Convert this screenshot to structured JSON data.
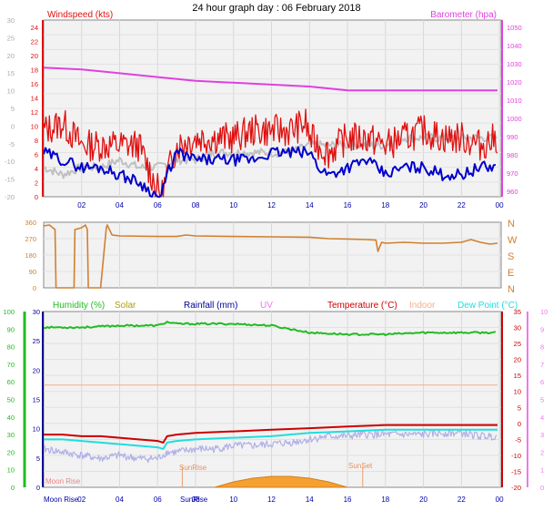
{
  "title": "24 hour graph day : 06 February 2018",
  "colors": {
    "wind": "#e01010",
    "gust_avg": "#0000cc",
    "gray": "#c0c0c0",
    "baro": "#e040e0",
    "dir": "#d08030",
    "humidity": "#22bb22",
    "solar": "#b0a000",
    "rain": "#000099",
    "uv": "#ee77ee",
    "temp": "#cc0000",
    "indoor": "#f0b090",
    "dew": "#22dddd",
    "lavender": "#b0b0e8",
    "sunshade": "#f5a030",
    "plotbg": "#f2f2f2",
    "tick": "#dd33dd"
  },
  "x_ticks": [
    "02",
    "04",
    "06",
    "08",
    "10",
    "12",
    "14",
    "16",
    "18",
    "20",
    "22",
    "00"
  ],
  "chart_data": [
    {
      "type": "line",
      "id": "wind",
      "title": "24 hour graph day : 06 February 2018",
      "legend": [
        "Windspeed (kts)",
        "Barometer (hpa)"
      ],
      "left_outer_ticks": [
        "30",
        "25",
        "20",
        "15",
        "10",
        "5",
        "0",
        "-5",
        "-10",
        "-15",
        "-20"
      ],
      "left_inner_ticks": [
        "24",
        "22",
        "20",
        "18",
        "16",
        "14",
        "12",
        "10",
        "8",
        "6",
        "4",
        "2",
        "0"
      ],
      "right_ticks": [
        "1050",
        "1040",
        "1030",
        "1020",
        "1010",
        "1000",
        "990",
        "980",
        "970",
        "960"
      ],
      "ylim_left": [
        0,
        24
      ],
      "ylim_right": [
        957,
        1050
      ],
      "series": [
        {
          "name": "Windspeed (kts)",
          "key": "windspeed",
          "x": [
            0,
            1,
            2,
            3,
            4,
            5,
            6,
            6.2,
            6.5,
            7,
            8,
            9,
            10,
            11,
            12,
            13,
            13.8,
            14,
            14.5,
            15,
            16,
            17,
            18,
            19,
            20,
            21,
            22,
            23,
            23.9
          ],
          "y": [
            9,
            10,
            7,
            7,
            7,
            7,
            1,
            0,
            3,
            7,
            8,
            8,
            8,
            9,
            9,
            9,
            10,
            8,
            7,
            6,
            8,
            8,
            7,
            8,
            9,
            8,
            8,
            7,
            8
          ]
        },
        {
          "name": "",
          "key": "avg",
          "x": [
            0,
            1,
            2,
            3,
            4,
            5,
            5.5,
            6,
            6.2,
            6.5,
            7,
            8,
            9,
            10,
            11,
            12,
            13,
            13.8,
            14,
            14.5,
            15,
            16,
            17,
            18,
            19,
            20,
            21,
            22,
            23,
            23.9
          ],
          "y": [
            6,
            5,
            4,
            4,
            3,
            2,
            1,
            0,
            0,
            3,
            6,
            5,
            5,
            5,
            5,
            6,
            6,
            6,
            6,
            4,
            3,
            4,
            5,
            3,
            4,
            4,
            3,
            3,
            4,
            4
          ]
        },
        {
          "name": "",
          "key": "gray",
          "x": [
            0,
            1,
            2,
            3,
            4,
            5,
            6,
            7,
            8,
            9,
            10,
            11,
            12,
            13,
            14,
            15,
            16,
            17,
            18,
            19,
            20,
            21,
            22,
            23,
            23.9
          ],
          "y": [
            4,
            3,
            4,
            4,
            5,
            4,
            4,
            5,
            5,
            6,
            6,
            6,
            6,
            6,
            7,
            7,
            7,
            7,
            7,
            8,
            8,
            8,
            8,
            8,
            8
          ]
        },
        {
          "name": "Barometer (hpa)",
          "key": "barometer",
          "x": [
            0,
            2,
            4,
            6,
            8,
            10,
            12,
            14,
            16,
            18,
            20,
            22,
            23.9
          ],
          "y": [
            1025,
            1024,
            1022,
            1020,
            1018,
            1017,
            1016,
            1015,
            1013,
            1013,
            1013,
            1013,
            1013
          ]
        }
      ]
    },
    {
      "type": "line",
      "id": "direction",
      "right_labels": [
        "N",
        "W",
        "S",
        "E",
        "N"
      ],
      "left_ticks": [
        "360",
        "270",
        "180",
        "90",
        "0"
      ],
      "ylim": [
        0,
        360
      ],
      "series": [
        {
          "name": "",
          "x": [
            0,
            0.3,
            0.6,
            0.65,
            1.6,
            1.65,
            2,
            2.2,
            2.3,
            2.35,
            3,
            3.3,
            3.35,
            3.6,
            4,
            6,
            7,
            7.5,
            8,
            10,
            12,
            14,
            15,
            16,
            17,
            17.5,
            17.6,
            17.8,
            18,
            19,
            20,
            21,
            22,
            22.5,
            23,
            23.5,
            23.9
          ],
          "y": [
            340,
            345,
            320,
            0,
            0,
            320,
            330,
            345,
            320,
            0,
            0,
            330,
            345,
            290,
            285,
            282,
            282,
            290,
            285,
            282,
            280,
            278,
            270,
            268,
            265,
            262,
            200,
            250,
            245,
            250,
            245,
            245,
            250,
            265,
            250,
            240,
            245
          ]
        }
      ]
    },
    {
      "type": "line",
      "id": "temperature",
      "legend": [
        "Humidity (%)",
        "Solar",
        "Rainfall (mm)",
        "UV",
        "Temperature (°C)",
        "Indoor",
        "Dew Point (°C)"
      ],
      "left_outer_ticks": [
        "100",
        "90",
        "80",
        "70",
        "60",
        "50",
        "40",
        "30",
        "20",
        "10",
        "0"
      ],
      "left_inner_ticks": [
        "30",
        "25",
        "20",
        "15",
        "10",
        "5",
        "0"
      ],
      "right_inner_ticks": [
        "35",
        "30",
        "25",
        "20",
        "15",
        "10",
        "5",
        "0",
        "-5",
        "-10",
        "-15",
        "-20"
      ],
      "right_outer_ticks": [
        "10",
        "9",
        "8",
        "7",
        "6",
        "5",
        "4",
        "3",
        "2",
        "1",
        "0"
      ],
      "ylim_temp": [
        -20,
        35
      ],
      "ylim_humidity": [
        0,
        100
      ],
      "annotations": [
        "Moon Rise",
        "SunRise",
        "SunSet",
        "SunRise"
      ],
      "series": [
        {
          "name": "Humidity (%)",
          "key": "humidity",
          "x": [
            0,
            2,
            4,
            6,
            6.5,
            7,
            8,
            10,
            12,
            13,
            14,
            16,
            18,
            20,
            22,
            23.9
          ],
          "y": [
            91,
            91,
            92,
            92,
            94,
            93,
            93,
            93,
            92,
            90,
            88,
            87,
            87,
            88,
            88,
            88
          ]
        },
        {
          "name": "Temperature (°C)",
          "key": "temperature",
          "x": [
            0,
            1,
            2,
            3,
            4,
            5,
            6,
            6.3,
            6.5,
            7,
            8,
            10,
            12,
            14,
            16,
            18,
            20,
            22,
            23.9
          ],
          "y": [
            -3.5,
            -3.5,
            -4,
            -4,
            -4.5,
            -5,
            -5.5,
            -6,
            -4,
            -3.5,
            -3,
            -2.5,
            -2,
            -1.5,
            -1,
            -0.5,
            -0.5,
            -0.5,
            -0.5
          ]
        },
        {
          "name": "Dew Point (°C)",
          "key": "dewpoint",
          "x": [
            0,
            1,
            2,
            3,
            4,
            5,
            6,
            6.3,
            6.5,
            7,
            8,
            10,
            12,
            14,
            16,
            18,
            20,
            22,
            23.9
          ],
          "y": [
            -5,
            -5,
            -5.5,
            -6,
            -6.5,
            -7,
            -7.5,
            -8,
            -6,
            -5.5,
            -5,
            -4.5,
            -4,
            -3,
            -2.5,
            -2,
            -2,
            -2,
            -2
          ]
        },
        {
          "name": "",
          "key": "indoor_line",
          "x": [
            0,
            23.9
          ],
          "y": [
            12,
            12
          ]
        },
        {
          "name": "",
          "key": "lavender",
          "x": [
            0,
            1,
            2,
            3,
            4,
            5,
            6,
            6.5,
            7,
            8,
            9,
            10,
            11,
            12,
            13,
            14,
            15,
            16,
            17,
            18,
            19,
            20,
            21,
            22,
            23,
            23.9
          ],
          "y": [
            -8,
            -9,
            -10,
            -11,
            -10,
            -11,
            -11,
            -9,
            -9,
            -8,
            -8,
            -7,
            -7,
            -6.5,
            -6,
            -5,
            -4,
            -4,
            -3.5,
            -3.5,
            -3.5,
            -3.5,
            -3,
            -3,
            -4,
            -4
          ]
        },
        {
          "name": "Solar",
          "key": "solar",
          "x": [
            9,
            10,
            11,
            12,
            13,
            14,
            15,
            16
          ],
          "y": [
            0,
            1.5,
            2.5,
            3,
            3,
            2.5,
            1.5,
            0
          ]
        }
      ]
    }
  ]
}
